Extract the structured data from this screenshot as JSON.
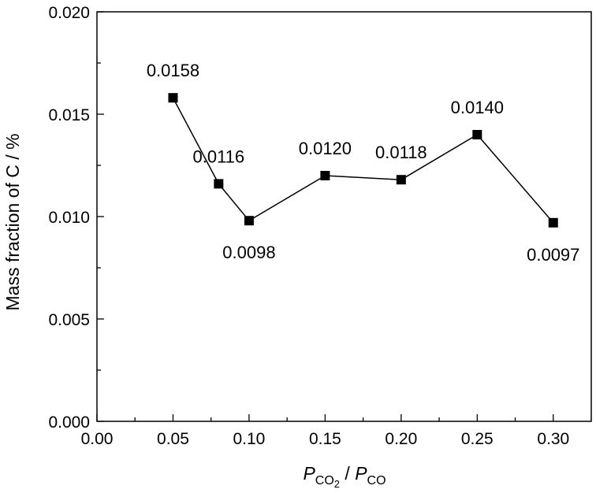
{
  "chart_data": {
    "type": "line",
    "title": "",
    "xlabel": {
      "main": "P",
      "sub1": "CO",
      "subsub": "2",
      "sep": " / ",
      "main2": "P",
      "sub2": "CO"
    },
    "ylabel": "Mass fraction of C / %",
    "xlim": [
      0.0,
      0.325
    ],
    "ylim": [
      0.0,
      0.02
    ],
    "x_ticks": [
      "0.00",
      "0.05",
      "0.10",
      "0.15",
      "0.20",
      "0.25",
      "0.30"
    ],
    "y_ticks": [
      "0.000",
      "0.005",
      "0.010",
      "0.015",
      "0.020"
    ],
    "grid": false,
    "marker": "square",
    "series": [
      {
        "x": [
          0.05,
          0.08,
          0.1,
          0.15,
          0.2,
          0.25,
          0.3
        ],
        "y": [
          0.0158,
          0.0116,
          0.0098,
          0.012,
          0.0118,
          0.014,
          0.0097
        ],
        "labels": [
          "0.0158",
          "0.0116",
          "0.0098",
          "0.0120",
          "0.0118",
          "0.0140",
          "0.0097"
        ],
        "label_pos": [
          "above",
          "above",
          "below",
          "above",
          "above",
          "above",
          "below"
        ]
      }
    ]
  }
}
